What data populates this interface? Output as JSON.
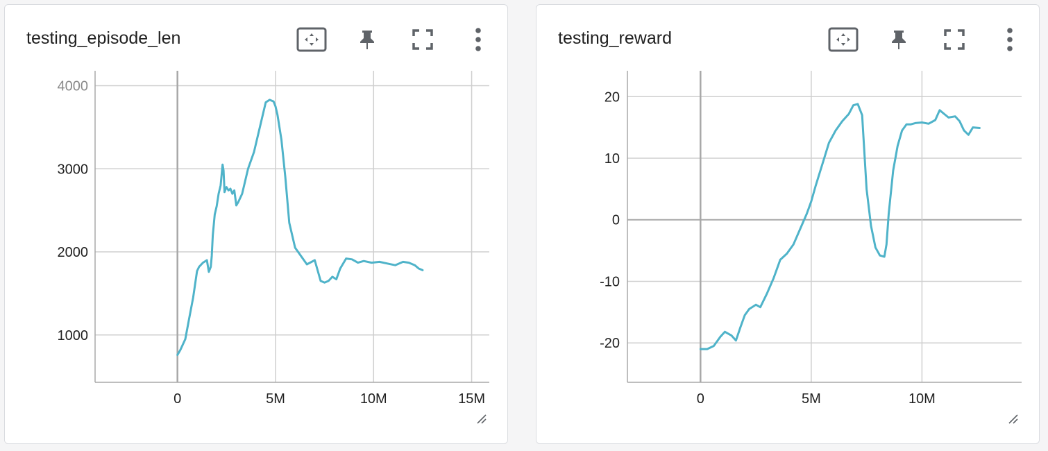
{
  "colors": {
    "series": "#4fb3c9",
    "grid": "#cfcfcf",
    "zero_axis": "#a8a8a8",
    "icon": "#5f6368"
  },
  "cards": [
    {
      "title": "testing_episode_len",
      "toolbar": {
        "fit_icon": "fit-domain-icon",
        "pin_icon": "pin-icon",
        "fullscreen_icon": "fullscreen-icon",
        "more_icon": "more-vert-icon"
      }
    },
    {
      "title": "testing_reward",
      "toolbar": {
        "fit_icon": "fit-domain-icon",
        "pin_icon": "pin-icon",
        "fullscreen_icon": "fullscreen-icon",
        "more_icon": "more-vert-icon"
      }
    }
  ],
  "chart_data": [
    {
      "type": "line",
      "title": "testing_episode_len",
      "xlim": [
        -4200000,
        15900000
      ],
      "ylim": [
        430,
        4180
      ],
      "grid": true,
      "x_ticks": [
        0,
        5000000,
        10000000,
        15000000
      ],
      "x_tick_labels": [
        "0",
        "5M",
        "10M",
        "15M"
      ],
      "y_ticks": [
        1000,
        2000,
        3000,
        4000
      ],
      "y_tick_labels": [
        "1000",
        "2000",
        "3000",
        "4000"
      ],
      "series": [
        {
          "x": [
            0,
            150000,
            400000,
            600000,
            800000,
            1000000,
            1100000,
            1300000,
            1500000,
            1600000,
            1700000,
            1750000,
            1800000,
            1900000,
            2000000,
            2100000,
            2200000,
            2300000,
            2350000,
            2400000,
            2500000,
            2600000,
            2700000,
            2800000,
            2900000,
            3000000,
            3100000,
            3300000,
            3600000,
            3900000,
            4200000,
            4500000,
            4700000,
            4900000,
            5000000,
            5100000,
            5300000,
            5500000,
            5700000,
            6000000,
            6300000,
            6600000,
            7000000,
            7300000,
            7500000,
            7700000,
            7900000,
            8100000,
            8300000,
            8600000,
            8900000,
            9200000,
            9500000,
            9900000,
            10300000,
            10700000,
            11100000,
            11500000,
            11800000,
            12100000,
            12300000,
            12500000
          ],
          "y": [
            760,
            820,
            950,
            1200,
            1450,
            1770,
            1820,
            1870,
            1900,
            1760,
            1820,
            1950,
            2200,
            2450,
            2550,
            2700,
            2800,
            3050,
            2980,
            2720,
            2780,
            2740,
            2760,
            2700,
            2740,
            2560,
            2600,
            2700,
            3000,
            3200,
            3500,
            3800,
            3830,
            3810,
            3750,
            3650,
            3350,
            2900,
            2350,
            2050,
            1950,
            1850,
            1900,
            1650,
            1630,
            1650,
            1700,
            1670,
            1800,
            1920,
            1910,
            1870,
            1890,
            1870,
            1880,
            1860,
            1840,
            1880,
            1870,
            1840,
            1800,
            1780
          ]
        }
      ]
    },
    {
      "type": "line",
      "title": "testing_reward",
      "xlim": [
        -3300000,
        14500000
      ],
      "ylim": [
        -26.4,
        24.2
      ],
      "grid": true,
      "x_ticks": [
        0,
        5000000,
        10000000
      ],
      "x_tick_labels": [
        "0",
        "5M",
        "10M"
      ],
      "y_ticks": [
        -20,
        -10,
        0,
        10,
        20
      ],
      "y_tick_labels": [
        "-20",
        "-10",
        "0",
        "10",
        "20"
      ],
      "series": [
        {
          "x": [
            0,
            300000,
            600000,
            900000,
            1100000,
            1400000,
            1600000,
            1800000,
            2000000,
            2200000,
            2500000,
            2700000,
            3000000,
            3300000,
            3600000,
            3900000,
            4200000,
            4500000,
            4800000,
            5000000,
            5200000,
            5500000,
            5800000,
            6100000,
            6400000,
            6700000,
            6900000,
            7100000,
            7300000,
            7500000,
            7700000,
            7900000,
            8100000,
            8300000,
            8400000,
            8500000,
            8700000,
            8900000,
            9100000,
            9300000,
            9500000,
            9700000,
            10000000,
            10300000,
            10600000,
            10800000,
            11000000,
            11200000,
            11500000,
            11700000,
            11900000,
            12100000,
            12300000,
            12600000
          ],
          "y": [
            -21,
            -21,
            -20.5,
            -19,
            -18.2,
            -18.8,
            -19.6,
            -17.5,
            -15.5,
            -14.5,
            -13.8,
            -14.2,
            -12,
            -9.5,
            -6.5,
            -5.5,
            -4,
            -1.5,
            1,
            3,
            5.5,
            9,
            12.5,
            14.5,
            16,
            17.2,
            18.6,
            18.8,
            17,
            5,
            -1,
            -4.5,
            -5.8,
            -6,
            -4,
            1,
            8,
            12,
            14.5,
            15.5,
            15.5,
            15.7,
            15.8,
            15.6,
            16.2,
            17.8,
            17.2,
            16.6,
            16.8,
            16,
            14.5,
            13.8,
            15,
            14.9
          ]
        }
      ]
    }
  ]
}
